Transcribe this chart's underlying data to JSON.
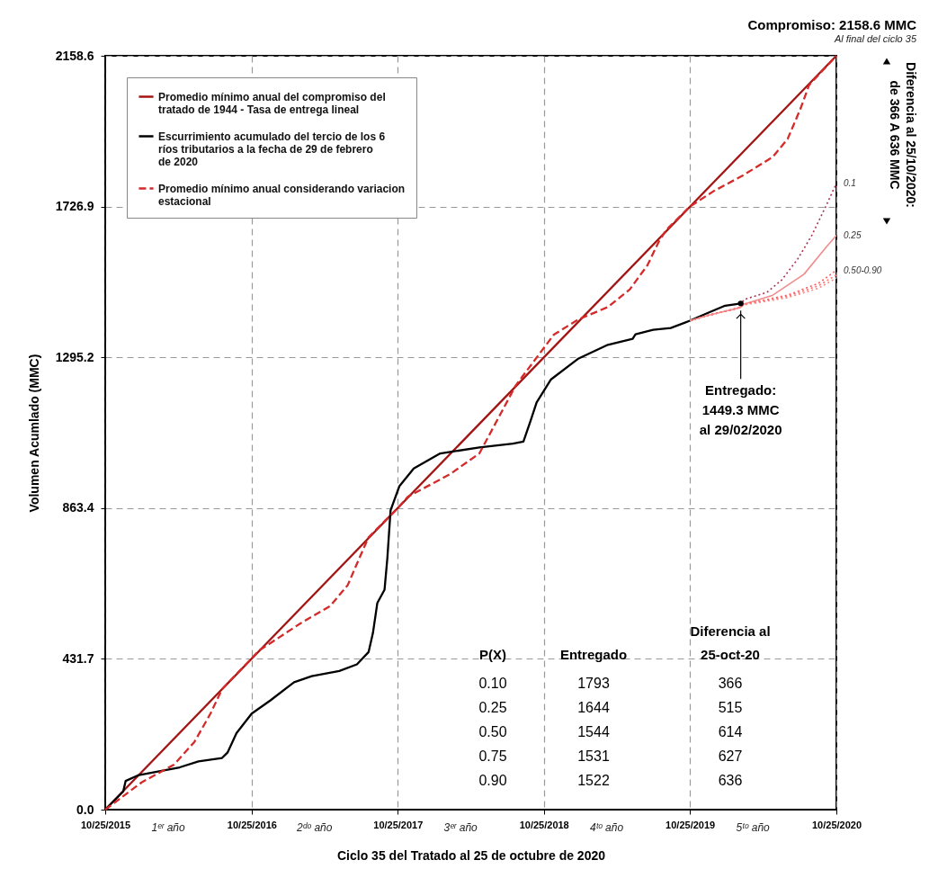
{
  "chart_data": {
    "type": "line",
    "title": "Compromiso: 2158.6 MMC",
    "subtitle": "Al final del ciclo 35",
    "xlabel": "Ciclo 35 del Tratado al 25 de octubre de 2020",
    "ylabel": "Volumen Acumlado (MMC)",
    "xlim": [
      "2015-10-25",
      "2020-10-25"
    ],
    "ylim": [
      0,
      2158.6
    ],
    "xticks": [
      {
        "value": "2015-10-25",
        "label": "10/25/2015"
      },
      {
        "value": "2016-10-25",
        "label": "10/25/2016"
      },
      {
        "value": "2017-10-25",
        "label": "10/25/2017"
      },
      {
        "value": "2018-10-25",
        "label": "10/25/2018"
      },
      {
        "value": "2019-10-25",
        "label": "10/25/2019"
      },
      {
        "value": "2020-10-25",
        "label": "10/25/2020"
      }
    ],
    "yticks": [
      {
        "value": 0,
        "label": "0.0"
      },
      431.7,
      863.4,
      1295.2,
      1726.9,
      2158.6
    ],
    "grid": true,
    "legend": "top left",
    "series": [
      {
        "name": "Promedio mínimo anual del compromiso del tratado de 1944 - Tasa de entrega lineal",
        "color": "#a31515",
        "line_style": "solid",
        "x": [
          "2015-10-25",
          "2020-10-25"
        ],
        "values": [
          0,
          2158.6
        ]
      },
      {
        "name": "Escurrimiento acumulado del tercio de los 6 ríos tributarios a la fecha de 29 de febrero de 2020",
        "color": "#000000",
        "line_style": "solid",
        "x": [
          "2015-10-25",
          "2015-12-09",
          "2015-12-15",
          "2016-01-17",
          "2016-04-28",
          "2016-06-14",
          "2016-08-12",
          "2016-08-26",
          "2016-09-17",
          "2016-10-25",
          "2016-12-11",
          "2017-02-08",
          "2017-03-24",
          "2017-06-01",
          "2017-07-15",
          "2017-08-13",
          "2017-08-24",
          "2017-09-04",
          "2017-09-22",
          "2017-09-29",
          "2017-10-07",
          "2017-10-29",
          "2017-12-04",
          "2018-02-08",
          "2018-05-17",
          "2018-08-09",
          "2018-09-04",
          "2018-09-22",
          "2018-10-07",
          "2018-11-12",
          "2019-01-20",
          "2019-04-03",
          "2019-06-04",
          "2019-06-11",
          "2019-07-25",
          "2019-09-07",
          "2019-10-25",
          "2019-12-08",
          "2020-01-21",
          "2020-02-29"
        ],
        "values": [
          0,
          52,
          82,
          99,
          121,
          138,
          148,
          164,
          219,
          275,
          313,
          365,
          382,
          397,
          416,
          451,
          506,
          592,
          630,
          720,
          857,
          926,
          977,
          1020,
          1037,
          1048,
          1054,
          1114,
          1166,
          1232,
          1292,
          1331,
          1348,
          1361,
          1374,
          1379,
          1400,
          1422,
          1443,
          1449.3
        ]
      },
      {
        "name": "Promedio mínimo anual considerando variacion estacional",
        "color": "#d42a2a",
        "line_style": "dashed",
        "x": [
          "2015-10-25",
          "2016-01-24",
          "2016-04-14",
          "2016-06-04",
          "2016-07-14",
          "2016-08-12",
          "2016-11-12",
          "2017-02-22",
          "2017-05-09",
          "2017-06-22",
          "2017-07-21",
          "2017-08-13",
          "2017-10-25",
          "2017-11-19",
          "2018-03-04",
          "2018-05-17",
          "2018-08-16",
          "2018-11-19",
          "2019-01-20",
          "2019-04-03",
          "2019-05-28",
          "2019-07-11",
          "2019-08-09",
          "2019-08-27",
          "2019-10-25",
          "2019-12-22",
          "2020-03-07",
          "2020-05-19",
          "2020-06-25",
          "2020-07-27",
          "2020-08-18",
          "2020-10-25"
        ],
        "values": [
          0,
          78,
          129,
          194,
          275,
          345,
          455,
          532,
          583,
          643,
          720,
          780,
          863.4,
          896,
          960,
          1020,
          1215,
          1360,
          1404,
          1439,
          1490,
          1559,
          1628,
          1660,
          1726.9,
          1770,
          1817,
          1869,
          1920,
          2006,
          2075,
          2158.6
        ]
      },
      {
        "name": "0.1",
        "color": "#b03050",
        "line_style": "dotted",
        "x": [
          "2019-10-25",
          "2019-12-08",
          "2020-02-29",
          "2020-03-07",
          "2020-05-04",
          "2020-06-10",
          "2020-07-20",
          "2020-08-25",
          "2020-09-30",
          "2020-10-25"
        ],
        "values": [
          1400,
          1415,
          1438,
          1460,
          1481,
          1516,
          1576,
          1645,
          1731,
          1793
        ]
      },
      {
        "name": "0.25",
        "color": "#f08c8c",
        "line_style": "solid",
        "x": [
          "2019-10-25",
          "2019-12-08",
          "2020-02-29",
          "2020-03-07",
          "2020-05-19",
          "2020-08-05",
          "2020-09-30",
          "2020-10-25"
        ],
        "values": [
          1400,
          1415,
          1438,
          1447,
          1473,
          1533,
          1611,
          1644
        ]
      },
      {
        "name": "0.50-0.90",
        "color": "#ff5a5a",
        "line_style": "dotted",
        "x": [
          "2019-10-25",
          "2019-12-08",
          "2020-02-29",
          "2020-03-07",
          "2020-06-25",
          "2020-09-10",
          "2020-10-25"
        ],
        "values": [
          1400,
          1415,
          1438,
          1447,
          1473,
          1507,
          1544
        ]
      },
      {
        "color": "#ff6e6e",
        "line_style": "dotted",
        "x": [
          "2019-10-25",
          "2019-12-08",
          "2020-02-29",
          "2020-03-07",
          "2020-06-25",
          "2020-09-10",
          "2020-10-25"
        ],
        "values": [
          1400,
          1415,
          1438,
          1446,
          1470,
          1500,
          1531
        ]
      },
      {
        "color": "#ff8282",
        "line_style": "dotted",
        "x": [
          "2019-10-25",
          "2019-12-08",
          "2020-02-29",
          "2020-03-07",
          "2020-06-25",
          "2020-09-10",
          "2020-10-25"
        ],
        "values": [
          1400,
          1415,
          1438,
          1445,
          1466,
          1493,
          1522
        ]
      }
    ],
    "annotations": [
      "1ᵉʳ año",
      "2ᵈᵒ año",
      "3ᵉʳ año",
      "4ᵗᵒ año",
      "5ᵗᵒ año",
      "Diferencia al 25/10/2020:\nde 366 A 636 MMC",
      {
        "text": "Entregado:\n1449.3 MMC\nal 29/02/2020",
        "x": "2020-02-29",
        "y": 1449.3
      },
      "P(X)",
      "Entregado",
      "Diferencia al\n25-oct-20",
      "0.10",
      "1793",
      "366",
      "0.25",
      "1644",
      "515",
      "0.50",
      "1544",
      "614",
      "0.75",
      "1531",
      "627",
      "0.90",
      "1522",
      "636"
    ]
  }
}
